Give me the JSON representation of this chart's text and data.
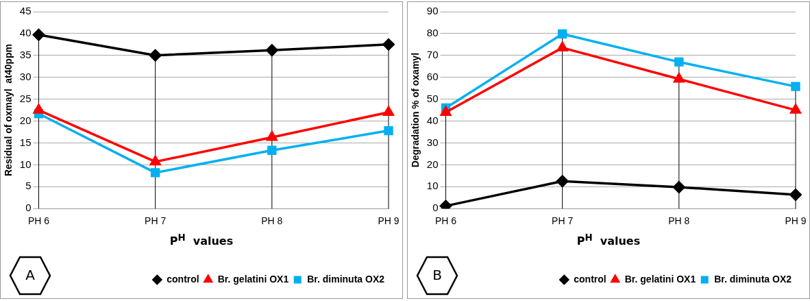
{
  "chart_data": [
    {
      "type": "line",
      "xlabel": "P$^{H}$  values",
      "ylabel": "Residual of oxmayl  at40ppm",
      "categories": [
        "PH 6",
        "PH 7",
        "PH 8",
        "PH 9"
      ],
      "ylim": [
        0,
        45
      ],
      "yticks": [
        0,
        5,
        10,
        15,
        20,
        25,
        30,
        35,
        40,
        45
      ],
      "grid": true,
      "legend": "bottom",
      "annotations": [
        "A"
      ],
      "series": [
        {
          "name": "control",
          "color": "#000000",
          "marker": "diamond",
          "values": [
            39.7,
            35,
            36.2,
            37.5
          ]
        },
        {
          "name": "Br. gelatini OX1",
          "color": "#ff0000",
          "marker": "triangle",
          "values": [
            22.5,
            10.7,
            16.3,
            22
          ]
        },
        {
          "name": "Br. diminuta OX2",
          "color": "#00b0f0",
          "marker": "square",
          "values": [
            21.7,
            8.2,
            13.3,
            17.8
          ]
        }
      ]
    },
    {
      "type": "line",
      "xlabel": "P$^{H}$  values",
      "ylabel": "Degradation % of oxamyl",
      "categories": [
        "PH 6",
        "PH 7",
        "PH 8",
        "PH 9"
      ],
      "ylim": [
        0,
        90
      ],
      "yticks": [
        0,
        10,
        20,
        30,
        40,
        50,
        60,
        70,
        80,
        90
      ],
      "grid": true,
      "legend": "bottom",
      "annotations": [
        "B"
      ],
      "series": [
        {
          "name": "control",
          "color": "#000000",
          "marker": "diamond",
          "values": [
            1.2,
            12.5,
            9.8,
            6.3
          ]
        },
        {
          "name": "Br. gelatini OX1",
          "color": "#ff0000",
          "marker": "triangle",
          "values": [
            44,
            73.5,
            59.2,
            45
          ]
        },
        {
          "name": "Br. diminuta OX2",
          "color": "#00b0f0",
          "marker": "square",
          "values": [
            46,
            79.8,
            67,
            55.8
          ]
        }
      ]
    }
  ]
}
